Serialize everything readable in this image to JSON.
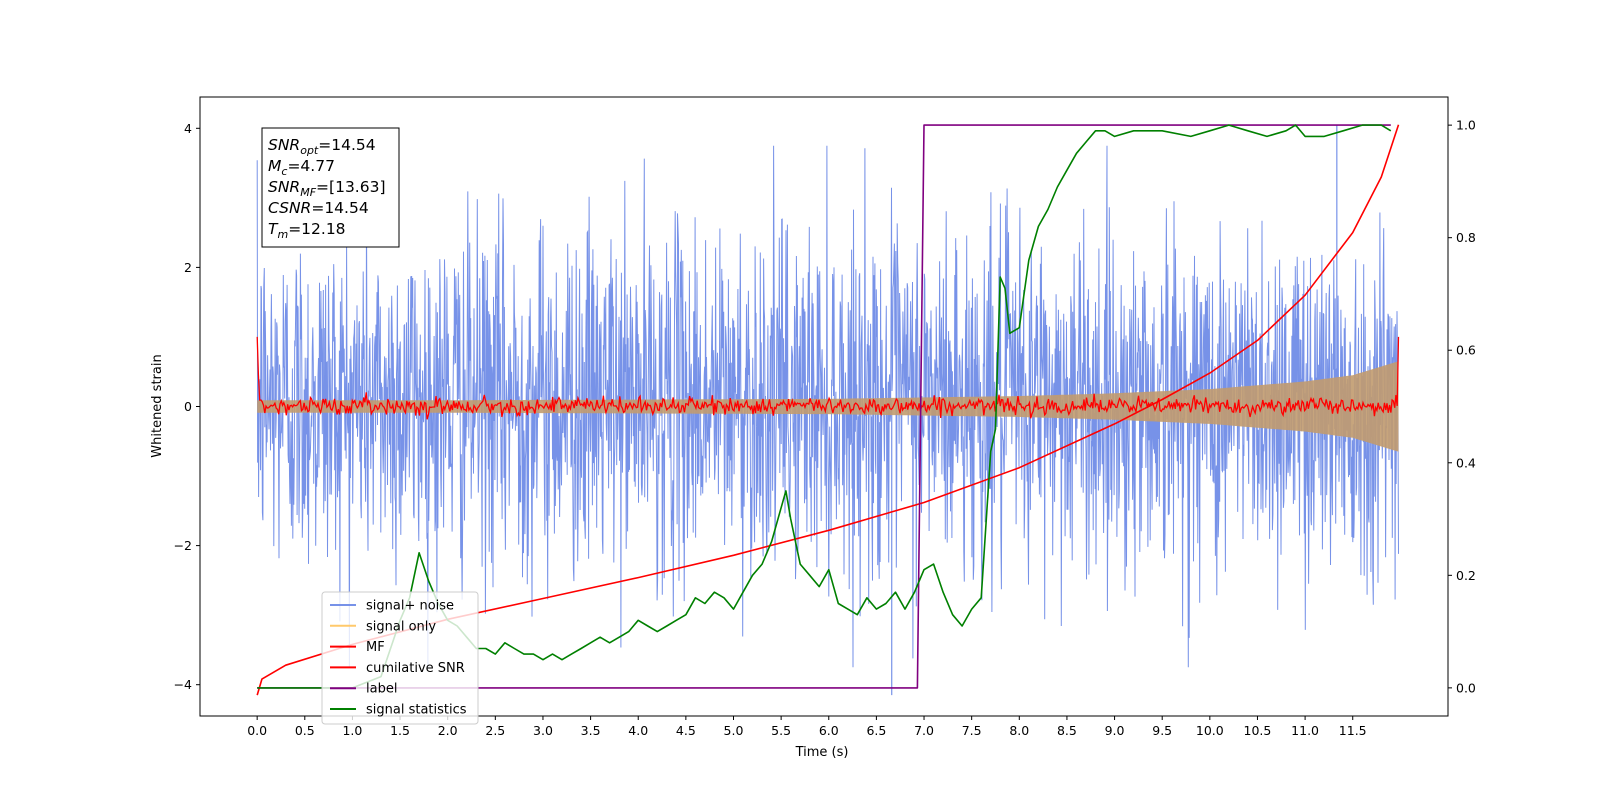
{
  "chart_data": {
    "type": "line",
    "xlabel": "Time (s)",
    "ylabel": "Whitened strain",
    "xlim": [
      -0.6,
      12.5
    ],
    "ylim_left": [
      -4.45,
      4.45
    ],
    "ylim_right": [
      -0.05,
      1.05
    ],
    "x_ticks": [
      "0.0",
      "0.5",
      "1.0",
      "1.5",
      "2.0",
      "2.5",
      "3.0",
      "3.5",
      "4.0",
      "4.5",
      "5.0",
      "5.5",
      "6.0",
      "6.5",
      "7.0",
      "7.5",
      "8.0",
      "8.5",
      "9.0",
      "9.5",
      "10.0",
      "10.5",
      "11.0",
      "11.5"
    ],
    "y_ticks_left": [
      "4",
      "2",
      "0",
      "−2",
      "−4"
    ],
    "y_ticks_right": [
      "0.0",
      "0.2",
      "0.4",
      "0.6",
      "0.8",
      "1.0"
    ],
    "info_box": {
      "snr_opt": {
        "label": "SNR",
        "sub": "opt",
        "value": "=14.54"
      },
      "mc": {
        "label": "M",
        "sub": "c",
        "value": "=4.77"
      },
      "snr_mf": {
        "label": "SNR",
        "sub": "MF",
        "value": "=[13.63]"
      },
      "csnr": {
        "label": "CSNR",
        "value": "=14.54"
      },
      "tm": {
        "label": "T",
        "sub": "m",
        "value": "=12.18"
      }
    },
    "legend": {
      "placement": "lower-left",
      "entries": [
        {
          "label": "signal+ noise",
          "color": "#7792e8"
        },
        {
          "label": "signal only",
          "color": "#ffc96b"
        },
        {
          "label": "MF",
          "color": "#ff0000"
        },
        {
          "label": "cumilative SNR",
          "color": "#ff0000"
        },
        {
          "label": "label",
          "color": "#800080"
        },
        {
          "label": "signal statistics",
          "color": "#008000"
        }
      ]
    },
    "series": [
      {
        "name": "signal+ noise",
        "axis": "left",
        "color": "#7792e8",
        "x_range": [
          0.0,
          11.98
        ],
        "typical_band": [
          -1.9,
          2.1
        ],
        "extreme_range": [
          -4.15,
          4.05
        ]
      },
      {
        "name": "signal only",
        "axis": "left",
        "color": "#c19b6f",
        "x": [
          0,
          2,
          4,
          6,
          8,
          9,
          10,
          11,
          11.5,
          11.98
        ],
        "amplitude": [
          0.09,
          0.09,
          0.1,
          0.11,
          0.15,
          0.19,
          0.25,
          0.36,
          0.45,
          0.65
        ]
      },
      {
        "name": "MF",
        "axis": "left",
        "color": "#ff0000",
        "x_range": [
          0.0,
          11.98
        ],
        "start_value": 1.0,
        "end_value": 1.0,
        "typical_band": [
          -0.1,
          0.12
        ]
      },
      {
        "name": "cumilative SNR",
        "axis": "left",
        "color": "#ff0000",
        "x": [
          0,
          0.05,
          0.3,
          1.0,
          2.0,
          3.0,
          4.0,
          5.0,
          6.0,
          7.0,
          8.0,
          9.0,
          9.5,
          10.0,
          10.5,
          11.0,
          11.5,
          11.8,
          11.98
        ],
        "y": [
          -4.15,
          -3.92,
          -3.72,
          -3.42,
          -3.06,
          -2.76,
          -2.46,
          -2.14,
          -1.78,
          -1.38,
          -0.88,
          -0.25,
          0.1,
          0.48,
          0.95,
          1.6,
          2.5,
          3.3,
          4.05
        ]
      },
      {
        "name": "label",
        "axis": "right",
        "color": "#800080",
        "x": [
          0.0,
          6.93,
          7.0,
          11.9
        ],
        "y": [
          0.0,
          0.0,
          1.0,
          1.0
        ]
      },
      {
        "name": "signal statistics",
        "axis": "right",
        "color": "#008000",
        "x": [
          0.0,
          0.5,
          1.0,
          1.3,
          1.5,
          1.6,
          1.7,
          1.8,
          1.9,
          2.0,
          2.1,
          2.2,
          2.3,
          2.4,
          2.5,
          2.6,
          2.7,
          2.8,
          2.9,
          3.0,
          3.1,
          3.2,
          3.3,
          3.4,
          3.5,
          3.6,
          3.7,
          3.8,
          3.9,
          4.0,
          4.1,
          4.2,
          4.3,
          4.4,
          4.5,
          4.6,
          4.7,
          4.8,
          4.9,
          5.0,
          5.1,
          5.2,
          5.3,
          5.4,
          5.5,
          5.55,
          5.6,
          5.7,
          5.8,
          5.9,
          6.0,
          6.1,
          6.2,
          6.3,
          6.4,
          6.5,
          6.6,
          6.7,
          6.8,
          6.9,
          7.0,
          7.1,
          7.2,
          7.3,
          7.4,
          7.5,
          7.6,
          7.7,
          7.75,
          7.8,
          7.85,
          7.9,
          8.0,
          8.1,
          8.2,
          8.3,
          8.4,
          8.5,
          8.6,
          8.7,
          8.8,
          8.9,
          9.0,
          9.2,
          9.5,
          9.8,
          10.0,
          10.2,
          10.4,
          10.6,
          10.8,
          10.9,
          11.0,
          11.2,
          11.4,
          11.6,
          11.8,
          11.9
        ],
        "y": [
          0.0,
          0.0,
          0.0,
          0.02,
          0.12,
          0.16,
          0.24,
          0.19,
          0.15,
          0.12,
          0.11,
          0.09,
          0.07,
          0.07,
          0.06,
          0.08,
          0.07,
          0.06,
          0.06,
          0.05,
          0.06,
          0.05,
          0.06,
          0.07,
          0.08,
          0.09,
          0.08,
          0.09,
          0.1,
          0.12,
          0.11,
          0.1,
          0.11,
          0.12,
          0.13,
          0.16,
          0.15,
          0.17,
          0.16,
          0.14,
          0.17,
          0.2,
          0.22,
          0.26,
          0.32,
          0.35,
          0.3,
          0.22,
          0.2,
          0.18,
          0.21,
          0.15,
          0.14,
          0.13,
          0.16,
          0.14,
          0.15,
          0.17,
          0.14,
          0.17,
          0.21,
          0.22,
          0.17,
          0.13,
          0.11,
          0.14,
          0.16,
          0.42,
          0.46,
          0.73,
          0.71,
          0.63,
          0.64,
          0.76,
          0.82,
          0.85,
          0.89,
          0.92,
          0.95,
          0.97,
          0.99,
          0.99,
          0.98,
          0.99,
          0.99,
          0.98,
          0.99,
          1.0,
          0.99,
          0.98,
          0.99,
          1.0,
          0.98,
          0.98,
          0.99,
          1.0,
          1.0,
          0.99
        ]
      }
    ]
  }
}
